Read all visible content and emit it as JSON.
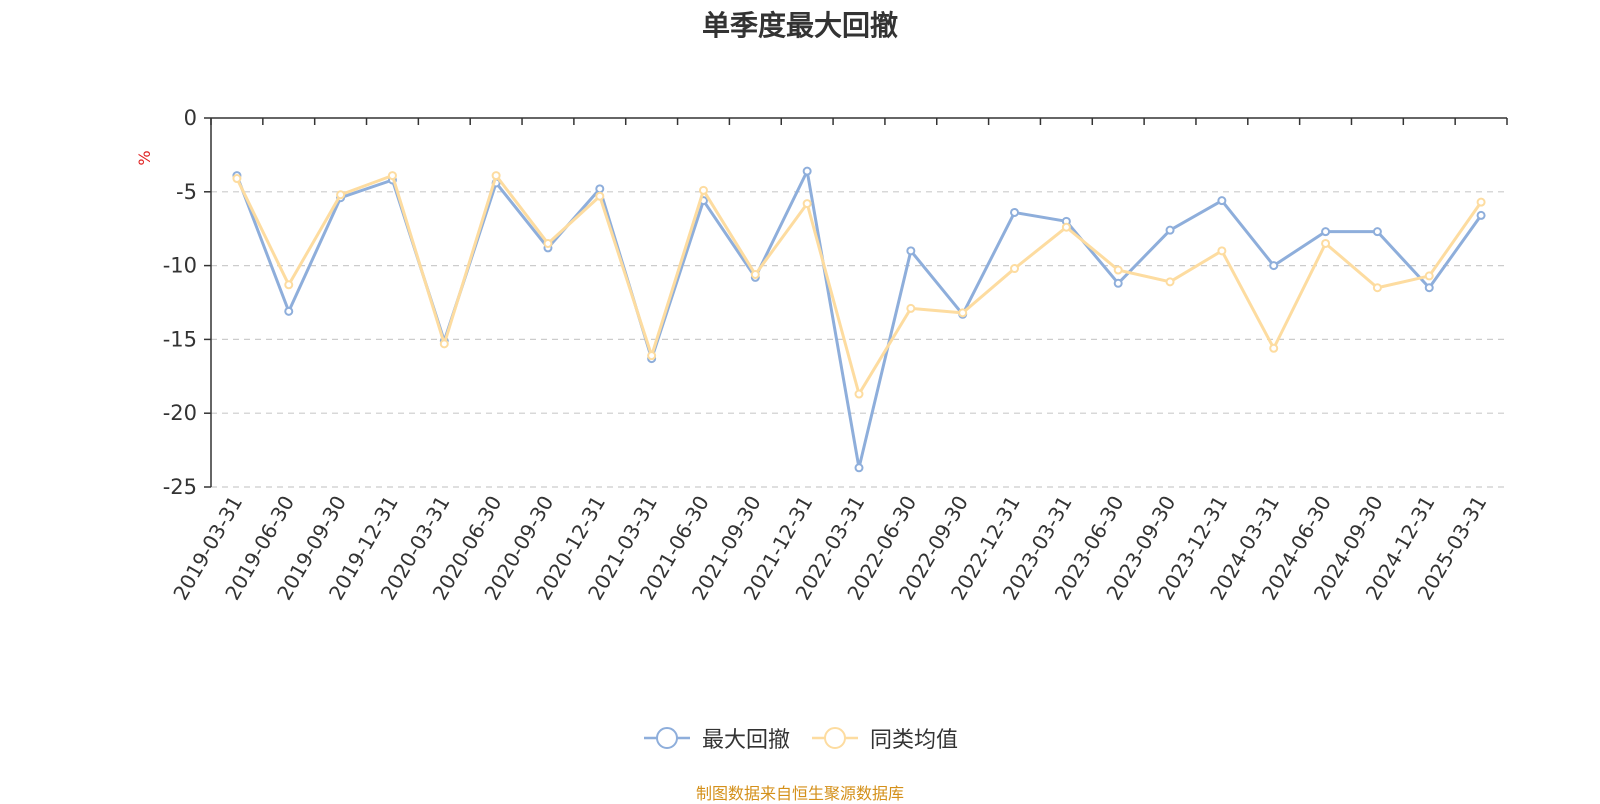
{
  "chart_data": {
    "type": "line",
    "title": "单季度最大回撤",
    "ylabel": "%",
    "ylim": [
      -25,
      0
    ],
    "yticks": [
      0,
      -5,
      -10,
      -15,
      -20,
      -25
    ],
    "grid": true,
    "legend_position": "bottom",
    "categories": [
      "2019-03-31",
      "2019-06-30",
      "2019-09-30",
      "2019-12-31",
      "2020-03-31",
      "2020-06-30",
      "2020-09-30",
      "2020-12-31",
      "2021-03-31",
      "2021-06-30",
      "2021-09-30",
      "2021-12-31",
      "2022-03-31",
      "2022-06-30",
      "2022-09-30",
      "2022-12-31",
      "2023-03-31",
      "2023-06-30",
      "2023-09-30",
      "2023-12-31",
      "2024-03-31",
      "2024-06-30",
      "2024-09-30",
      "2024-12-31",
      "2025-03-31"
    ],
    "series": [
      {
        "name": "最大回撤",
        "color": "#8eaedb",
        "values": [
          -3.9,
          -13.1,
          -5.4,
          -4.2,
          -15.1,
          -4.4,
          -8.8,
          -4.8,
          -16.3,
          -5.6,
          -10.8,
          -3.6,
          -23.7,
          -9.0,
          -13.3,
          -6.4,
          -7.0,
          -11.2,
          -7.6,
          -5.6,
          -10.0,
          -7.7,
          -7.7,
          -11.5,
          -6.6
        ]
      },
      {
        "name": "同类均值",
        "color": "#fddca0",
        "values": [
          -4.1,
          -11.3,
          -5.2,
          -3.9,
          -15.3,
          -3.9,
          -8.5,
          -5.3,
          -16.1,
          -4.9,
          -10.6,
          -5.8,
          -18.7,
          -12.9,
          -13.2,
          -10.2,
          -7.4,
          -10.3,
          -11.1,
          -9.0,
          -15.6,
          -8.5,
          -11.5,
          -10.7,
          -5.7
        ]
      }
    ],
    "source_note": "制图数据来自恒生聚源数据库"
  }
}
